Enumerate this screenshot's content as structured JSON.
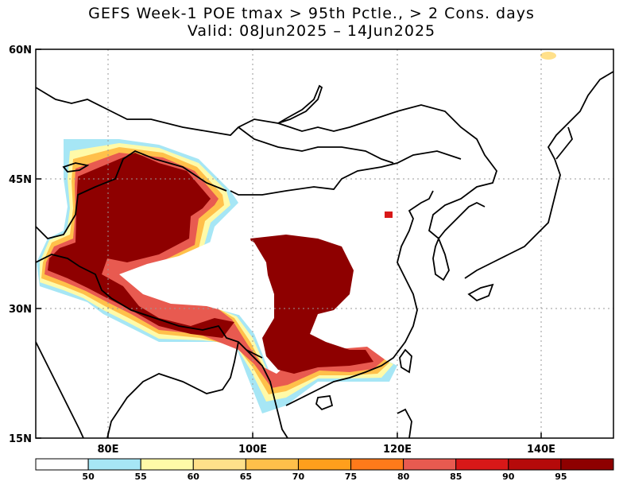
{
  "header": {
    "title_line1": "GEFS Week-1 POE tmax > 95th Pctle., > 2 Cons. days",
    "title_line2": "Valid: 08Jun2025 – 14Jun2025"
  },
  "map": {
    "lat_labels": [
      "60N",
      "45N",
      "30N",
      "15N"
    ],
    "lon_labels": [
      "80E",
      "100E",
      "120E",
      "140E"
    ],
    "gridlines": true
  },
  "colorbar": {
    "ticks": [
      "50",
      "55",
      "60",
      "65",
      "70",
      "75",
      "80",
      "85",
      "90",
      "95"
    ],
    "colors": [
      "#ffffff",
      "#a6e6f5",
      "#fffaa8",
      "#ffe08a",
      "#ffc04a",
      "#ff9f1c",
      "#ff7a1a",
      "#e85a50",
      "#d81818",
      "#b50a0a",
      "#8e0000"
    ]
  }
}
